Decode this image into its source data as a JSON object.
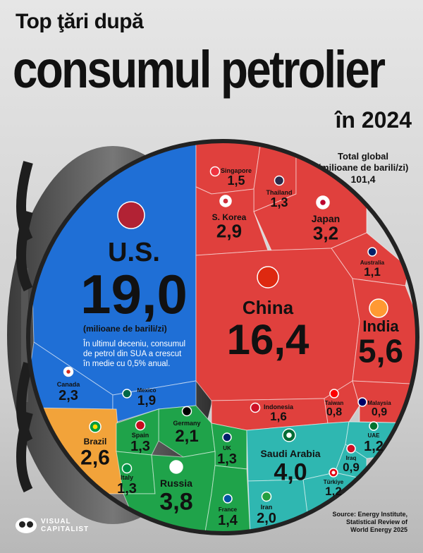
{
  "header": {
    "line1": "Top ţări după",
    "line2": "consumul petrolier",
    "line3": "în 2024"
  },
  "total": {
    "label": "Total global\n(milioane de barili/zi)",
    "label_a": "Total global",
    "label_b": "(milioane de barili/zi)",
    "value": "101,4"
  },
  "us_note": {
    "unit": "(milioane de barili/zi)",
    "text_1": "În ultimul deceniu, consumul",
    "text_2": "de petrol din SUA a crescut",
    "text_3": "în medie cu 0,5% anual."
  },
  "footer": {
    "logo_line1": "VISUAL",
    "logo_line2": "CAPITALIST",
    "source_1": "Source: Energy Institute,",
    "source_2": "Statistical Review of",
    "source_3": "World Energy 2025"
  },
  "colors": {
    "americas": "#1f6fd6",
    "asia": "#e0403d",
    "europe": "#1fa34a",
    "middle_east": "#2fb7b1",
    "latam": "#f2a33a"
  },
  "chart_data": {
    "type": "voronoi-treemap",
    "unit": "milioane de barili/zi",
    "total": 101.4,
    "series": [
      {
        "region": "americas",
        "items": [
          {
            "name": "U.S.",
            "value": 19.0,
            "label": "19,0"
          },
          {
            "name": "Canada",
            "value": 2.3,
            "label": "2,3"
          },
          {
            "name": "Mexico",
            "value": 1.9,
            "label": "1,9"
          }
        ]
      },
      {
        "region": "asia",
        "items": [
          {
            "name": "China",
            "value": 16.4,
            "label": "16,4"
          },
          {
            "name": "India",
            "value": 5.6,
            "label": "5,6"
          },
          {
            "name": "Japan",
            "value": 3.2,
            "label": "3,2"
          },
          {
            "name": "S. Korea",
            "value": 2.9,
            "label": "2,9"
          },
          {
            "name": "Singapore",
            "value": 1.5,
            "label": "1,5"
          },
          {
            "name": "Thailand",
            "value": 1.3,
            "label": "1,3"
          },
          {
            "name": "Australia",
            "value": 1.1,
            "label": "1,1"
          },
          {
            "name": "Indonesia",
            "value": 1.6,
            "label": "1,6"
          },
          {
            "name": "Taiwan",
            "value": 0.8,
            "label": "0,8"
          },
          {
            "name": "Malaysia",
            "value": 0.9,
            "label": "0,9"
          }
        ]
      },
      {
        "region": "latam",
        "items": [
          {
            "name": "Brazil",
            "value": 2.6,
            "label": "2,6"
          }
        ]
      },
      {
        "region": "europe",
        "items": [
          {
            "name": "Germany",
            "value": 2.1,
            "label": "2,1"
          },
          {
            "name": "Spain",
            "value": 1.3,
            "label": "1,3"
          },
          {
            "name": "UK",
            "value": 1.3,
            "label": "1,3"
          },
          {
            "name": "Italy",
            "value": 1.3,
            "label": "1,3"
          },
          {
            "name": "Russia",
            "value": 3.8,
            "label": "3,8"
          },
          {
            "name": "France",
            "value": 1.4,
            "label": "1,4"
          }
        ]
      },
      {
        "region": "middle_east",
        "items": [
          {
            "name": "Saudi Arabia",
            "value": 4.0,
            "label": "4,0"
          },
          {
            "name": "UAE",
            "value": 1.2,
            "label": "1,2"
          },
          {
            "name": "Iraq",
            "value": 0.9,
            "label": "0,9"
          },
          {
            "name": "Türkiye",
            "value": 1.2,
            "label": "1,2"
          },
          {
            "name": "Iran",
            "value": 2.0,
            "label": "2,0"
          }
        ]
      }
    ]
  }
}
